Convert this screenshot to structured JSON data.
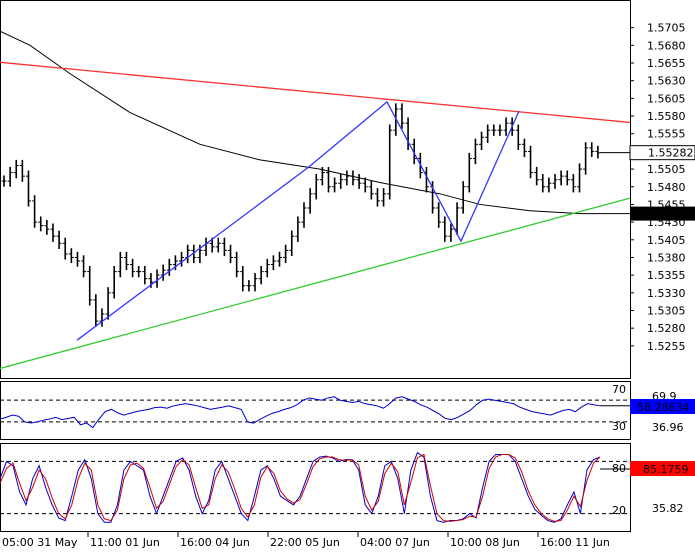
{
  "chart_data": [
    {
      "type": "candlestick",
      "panel": "price",
      "ylim": [
        1.5218,
        1.573
      ],
      "y_ticks": [
        "1.5705",
        "1.5680",
        "1.5655",
        "1.5630",
        "1.5605",
        "1.5580",
        "1.5555",
        "1.5530",
        "1.5505",
        "1.5480",
        "1.5455",
        "1.5430",
        "1.5405",
        "1.5380",
        "1.5355",
        "1.5330",
        "1.5305",
        "1.5280",
        "1.5255"
      ],
      "last_price": {
        "label": "1.55282",
        "value": 1.55282,
        "color": "#ffffff"
      },
      "moving_average": {
        "label": "1.544203",
        "value": 1.544203,
        "color": "#000000",
        "points": [
          [
            0,
            1.57
          ],
          [
            30,
            1.568
          ],
          [
            70,
            1.564
          ],
          [
            130,
            1.5585
          ],
          [
            200,
            1.554
          ],
          [
            260,
            1.5518
          ],
          [
            320,
            1.5505
          ],
          [
            380,
            1.5486
          ],
          [
            440,
            1.547
          ],
          [
            480,
            1.5455
          ],
          [
            530,
            1.5446
          ],
          [
            580,
            1.5442
          ],
          [
            630,
            1.5442
          ]
        ]
      },
      "trendlines": [
        {
          "name": "resistance",
          "color": "#ff3333",
          "points": [
            [
              0,
              1.5656
            ],
            [
              630,
              1.5571
            ]
          ]
        },
        {
          "name": "support",
          "color": "#33cc33",
          "points": [
            [
              0,
              1.5223
            ],
            [
              630,
              1.5464
            ]
          ]
        },
        {
          "name": "zigzag",
          "color": "#3333ff",
          "points": [
            [
              77,
              1.5263
            ],
            [
              308,
              1.5507
            ],
            [
              387,
              1.56
            ],
            [
              461,
              1.5403
            ],
            [
              519,
              1.5587
            ]
          ]
        }
      ],
      "closes": [
        1.5488,
        1.55,
        1.551,
        1.5495,
        1.546,
        1.543,
        1.5425,
        1.542,
        1.541,
        1.54,
        1.5385,
        1.538,
        1.5375,
        1.536,
        1.532,
        1.529,
        1.53,
        1.533,
        1.536,
        1.538,
        1.537,
        1.536,
        1.536,
        1.535,
        1.5345,
        1.5355,
        1.5362,
        1.537,
        1.5375,
        1.538,
        1.539,
        1.538,
        1.539,
        1.54,
        1.5395,
        1.54,
        1.539,
        1.538,
        1.536,
        1.534,
        1.534,
        1.535,
        1.536,
        1.537,
        1.5375,
        1.538,
        1.539,
        1.541,
        1.543,
        1.545,
        1.547,
        1.549,
        1.55,
        1.548,
        1.5485,
        1.549,
        1.5495,
        1.549,
        1.5485,
        1.548,
        1.547,
        1.546,
        1.547,
        1.556,
        1.559,
        1.557,
        1.554,
        1.552,
        1.55,
        1.548,
        1.545,
        1.543,
        1.541,
        1.542,
        1.545,
        1.548,
        1.552,
        1.554,
        1.555,
        1.556,
        1.556,
        1.556,
        1.557,
        1.556,
        1.554,
        1.553,
        1.55,
        1.549,
        1.548,
        1.5485,
        1.549,
        1.5495,
        1.549,
        1.548,
        1.5505,
        1.5535,
        1.553,
        1.5528
      ]
    },
    {
      "type": "line",
      "panel": "rsi",
      "ylim": [
        0,
        100
      ],
      "levels": [
        {
          "label": "70",
          "value": 70
        },
        {
          "label": "30",
          "value": 30
        }
      ],
      "static_labels": [
        "69.9",
        "36.96"
      ],
      "last_value": {
        "label": "58.28634",
        "value": 58.28634,
        "color": "#0000ff"
      },
      "series": [
        {
          "color": "#0000cc",
          "values": [
            35,
            38,
            42,
            40,
            30,
            28,
            30,
            33,
            35,
            38,
            34,
            36,
            38,
            25,
            28,
            20,
            35,
            48,
            52,
            46,
            42,
            45,
            48,
            50,
            52,
            55,
            56,
            54,
            58,
            60,
            62,
            60,
            58,
            55,
            52,
            54,
            56,
            58,
            55,
            52,
            30,
            28,
            34,
            40,
            45,
            48,
            52,
            55,
            60,
            68,
            72,
            70,
            68,
            72,
            74,
            68,
            66,
            64,
            66,
            62,
            60,
            58,
            54,
            62,
            72,
            74,
            70,
            66,
            60,
            56,
            50,
            44,
            36,
            34,
            38,
            44,
            50,
            60,
            68,
            70,
            68,
            66,
            64,
            62,
            56,
            52,
            48,
            46,
            44,
            42,
            46,
            50,
            52,
            48,
            56,
            62,
            60,
            58
          ]
        }
      ]
    },
    {
      "type": "line",
      "panel": "stochastic",
      "ylim": [
        0,
        100
      ],
      "levels": [
        {
          "label": "80",
          "value": 80
        },
        {
          "label": "20",
          "value": 20
        }
      ],
      "static_labels": [
        "35.82"
      ],
      "last_value": {
        "label": "85.1759",
        "value": 85.1759,
        "color": "#ff0000"
      },
      "series": [
        {
          "color": "#0000cc",
          "values": [
            60,
            80,
            75,
            45,
            30,
            60,
            75,
            50,
            30,
            15,
            12,
            40,
            70,
            82,
            60,
            20,
            10,
            10,
            30,
            70,
            80,
            75,
            70,
            40,
            20,
            40,
            60,
            80,
            84,
            70,
            40,
            20,
            35,
            70,
            80,
            60,
            40,
            20,
            12,
            40,
            70,
            75,
            60,
            40,
            35,
            30,
            40,
            60,
            80,
            85,
            86,
            84,
            80,
            82,
            82,
            70,
            30,
            20,
            40,
            75,
            80,
            60,
            20,
            70,
            90,
            85,
            40,
            12,
            10,
            12,
            12,
            14,
            20,
            15,
            50,
            80,
            88,
            88,
            88,
            80,
            60,
            40,
            25,
            18,
            12,
            10,
            14,
            30,
            45,
            20,
            70,
            82,
            85
          ]
        },
        {
          "color": "#cc0000",
          "values": [
            55,
            72,
            78,
            55,
            35,
            50,
            70,
            60,
            38,
            20,
            14,
            30,
            60,
            78,
            70,
            30,
            14,
            12,
            24,
            60,
            76,
            78,
            72,
            50,
            26,
            34,
            54,
            74,
            82,
            76,
            50,
            26,
            30,
            60,
            76,
            68,
            48,
            26,
            16,
            30,
            62,
            74,
            66,
            46,
            37,
            32,
            36,
            54,
            74,
            83,
            85,
            85,
            82,
            81,
            82,
            76,
            40,
            24,
            34,
            66,
            78,
            68,
            30,
            56,
            84,
            88,
            52,
            20,
            12,
            11,
            12,
            13,
            17,
            16,
            40,
            72,
            85,
            88,
            88,
            84,
            68,
            46,
            30,
            20,
            14,
            11,
            12,
            24,
            40,
            28,
            58,
            78,
            85
          ]
        }
      ]
    }
  ],
  "x_axis": {
    "labels": [
      "05:00 31 May",
      "11:00 01 Jun",
      "16:00 04 Jun",
      "22:00 05 Jun",
      "04:00 07 Jun",
      "10:00 08 Jun",
      "16:00 11 Jun"
    ]
  }
}
